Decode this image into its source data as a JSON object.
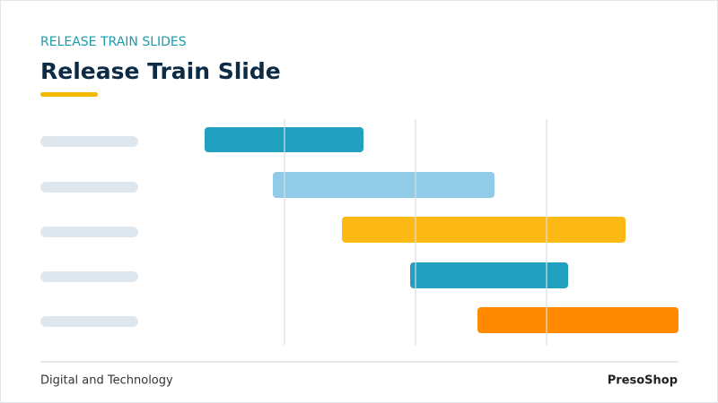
{
  "header": {
    "eyebrow": "RELEASE TRAIN SLIDES",
    "title": "Release Train Slide"
  },
  "footer": {
    "left": "Digital and Technology",
    "right": "PresoShop"
  }
}
